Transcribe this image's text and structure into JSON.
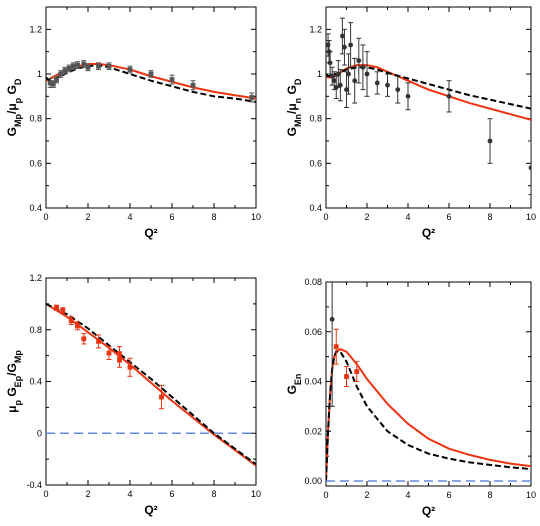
{
  "chart_data": [
    {
      "id": "gmp",
      "type": "line",
      "ylabel": "G_Mp/μ_p G_D",
      "xlabel": "Q²",
      "xlim": [
        0,
        10
      ],
      "ylim": [
        0.4,
        1.3
      ],
      "x_ticks": [
        0,
        2,
        4,
        6,
        8,
        10
      ],
      "y_ticks": [
        0.4,
        0.6,
        0.8,
        1,
        1.2
      ],
      "grid": false,
      "series": [
        {
          "style": "solid",
          "color": "#ee3311",
          "x": [
            0,
            0.1,
            0.3,
            0.6,
            1,
            1.5,
            2,
            2.5,
            3,
            4,
            5,
            6,
            7,
            8,
            9,
            10
          ],
          "y": [
            0.97,
            0.975,
            0.985,
            1.0,
            1.02,
            1.035,
            1.045,
            1.045,
            1.04,
            1.02,
            0.99,
            0.965,
            0.94,
            0.92,
            0.905,
            0.89
          ]
        },
        {
          "style": "dashed",
          "color": "#000000",
          "x": [
            0,
            0.1,
            0.3,
            0.6,
            1,
            1.5,
            2,
            2.5,
            3,
            4,
            5,
            6,
            7,
            8,
            9,
            10
          ],
          "y": [
            0.985,
            0.975,
            0.975,
            0.985,
            1.005,
            1.025,
            1.035,
            1.04,
            1.03,
            1.0,
            0.97,
            0.945,
            0.92,
            0.9,
            0.89,
            0.875
          ]
        },
        {
          "style": "markers",
          "marker": "square",
          "color": "#555555",
          "x": [
            0.2,
            0.35,
            0.5,
            0.7,
            0.9,
            1.1,
            1.3,
            1.5,
            1.8,
            2.0,
            2.5,
            3.0,
            4.0,
            5.0,
            6.0,
            7.0,
            9.8
          ],
          "y": [
            0.96,
            0.955,
            0.975,
            1.0,
            1.015,
            1.025,
            1.035,
            1.04,
            1.045,
            1.03,
            1.035,
            1.035,
            1.02,
            1.0,
            0.975,
            0.95,
            0.895
          ],
          "err": [
            0.02,
            0.015,
            0.015,
            0.015,
            0.015,
            0.015,
            0.015,
            0.015,
            0.015,
            0.015,
            0.015,
            0.015,
            0.015,
            0.015,
            0.02,
            0.02,
            0.02
          ]
        }
      ]
    },
    {
      "id": "gmn",
      "type": "line",
      "ylabel": "G_Mn/μ_n G_D",
      "xlabel": "Q²",
      "xlim": [
        0,
        10
      ],
      "ylim": [
        0.4,
        1.3
      ],
      "x_ticks": [
        0,
        2,
        4,
        6,
        8,
        10
      ],
      "y_ticks": [
        0.4,
        0.6,
        0.8,
        1,
        1.2
      ],
      "grid": false,
      "series": [
        {
          "style": "solid",
          "color": "#ee3311",
          "x": [
            0,
            0.1,
            0.3,
            0.6,
            1,
            1.5,
            2,
            2.5,
            3,
            4,
            5,
            6,
            7,
            8,
            9,
            10
          ],
          "y": [
            1.0,
            0.985,
            0.985,
            1.0,
            1.025,
            1.04,
            1.04,
            1.03,
            1.01,
            0.97,
            0.93,
            0.9,
            0.87,
            0.845,
            0.82,
            0.795
          ]
        },
        {
          "style": "dashed",
          "color": "#000000",
          "x": [
            0,
            0.1,
            0.3,
            0.6,
            1,
            1.5,
            2,
            2.5,
            3,
            4,
            5,
            6,
            7,
            8,
            9,
            10
          ],
          "y": [
            1.0,
            0.99,
            0.995,
            1.005,
            1.02,
            1.03,
            1.03,
            1.02,
            1.005,
            0.98,
            0.955,
            0.93,
            0.905,
            0.885,
            0.865,
            0.845
          ]
        },
        {
          "style": "markers",
          "marker": "circle",
          "color": "#333333",
          "x": [
            0.1,
            0.15,
            0.2,
            0.3,
            0.4,
            0.5,
            0.6,
            0.7,
            0.8,
            0.9,
            1.0,
            1.1,
            1.2,
            1.4,
            1.6,
            1.8,
            2.0,
            2.5,
            3.0,
            3.5,
            4.0,
            6.0,
            8.0,
            10.0
          ],
          "y": [
            1.13,
            1.1,
            1.05,
            0.99,
            0.97,
            0.94,
            1.0,
            0.95,
            1.17,
            1.12,
            0.93,
            1.0,
            1.13,
            0.97,
            1.06,
            1.03,
            1.0,
            0.96,
            0.95,
            0.93,
            0.9,
            0.9,
            0.7,
            0.58
          ],
          "err": [
            0.05,
            0.05,
            0.05,
            0.04,
            0.04,
            0.05,
            0.06,
            0.07,
            0.08,
            0.08,
            0.08,
            0.09,
            0.1,
            0.1,
            0.1,
            0.1,
            0.1,
            0.05,
            0.05,
            0.06,
            0.06,
            0.07,
            0.1,
            0.12
          ]
        }
      ]
    },
    {
      "id": "ratio",
      "type": "line",
      "ylabel": "μ_p G_Ep/G_Mp",
      "xlabel": "Q²",
      "xlim": [
        0,
        10
      ],
      "ylim": [
        -0.4,
        1.2
      ],
      "x_ticks": [
        0,
        2,
        4,
        6,
        8,
        10
      ],
      "y_ticks": [
        -0.4,
        0,
        0.4,
        0.8,
        1.2
      ],
      "grid": false,
      "series": [
        {
          "style": "solid",
          "color": "#ee3311",
          "x": [
            0,
            1,
            2,
            3,
            4,
            5,
            6,
            7,
            8,
            9,
            10
          ],
          "y": [
            1.0,
            0.9,
            0.78,
            0.66,
            0.53,
            0.39,
            0.25,
            0.12,
            -0.01,
            -0.13,
            -0.25
          ]
        },
        {
          "style": "dashed",
          "color": "#000000",
          "x": [
            0,
            1,
            2,
            3,
            4,
            5,
            6,
            7,
            8,
            9,
            10
          ],
          "y": [
            1.0,
            0.92,
            0.81,
            0.68,
            0.55,
            0.42,
            0.28,
            0.14,
            0.0,
            -0.12,
            -0.24
          ]
        },
        {
          "style": "hline",
          "color": "#6688dd",
          "y": 0
        },
        {
          "style": "markers",
          "marker": "square",
          "color": "#ee3311",
          "x": [
            0.5,
            0.8,
            1.2,
            1.5,
            1.8,
            2.5,
            3.0,
            3.5,
            3.5,
            4.0,
            5.5
          ],
          "y": [
            0.97,
            0.95,
            0.87,
            0.83,
            0.73,
            0.71,
            0.62,
            0.61,
            0.57,
            0.51,
            0.28
          ],
          "err": [
            0.02,
            0.02,
            0.03,
            0.03,
            0.04,
            0.05,
            0.05,
            0.06,
            0.06,
            0.07,
            0.09
          ]
        }
      ]
    },
    {
      "id": "gen",
      "type": "line",
      "ylabel": "G_En",
      "xlabel": "Q²",
      "xlim": [
        0,
        10
      ],
      "ylim": [
        -0.002,
        0.08
      ],
      "x_ticks": [
        0,
        2,
        4,
        6,
        8,
        10
      ],
      "y_ticks": [
        0,
        0.02,
        0.04,
        0.06,
        0.08
      ],
      "y_tick_labels": [
        "0.00",
        "0.02",
        "0.04",
        "0.06",
        "0.08"
      ],
      "grid": false,
      "series": [
        {
          "style": "solid",
          "color": "#ee3311",
          "x": [
            0,
            0.1,
            0.2,
            0.3,
            0.4,
            0.5,
            0.7,
            1.0,
            1.5,
            2,
            3,
            4,
            5,
            6,
            7,
            8,
            9,
            10
          ],
          "y": [
            0,
            0.02,
            0.035,
            0.045,
            0.05,
            0.052,
            0.053,
            0.052,
            0.047,
            0.041,
            0.031,
            0.023,
            0.017,
            0.013,
            0.0105,
            0.0085,
            0.007,
            0.006
          ]
        },
        {
          "style": "dashed",
          "color": "#000000",
          "x": [
            0,
            0.1,
            0.2,
            0.3,
            0.4,
            0.5,
            0.7,
            1.0,
            1.5,
            2,
            3,
            4,
            5,
            6,
            7,
            8,
            9,
            10
          ],
          "y": [
            0,
            0.02,
            0.035,
            0.045,
            0.05,
            0.052,
            0.052,
            0.048,
            0.038,
            0.03,
            0.02,
            0.0145,
            0.011,
            0.009,
            0.0075,
            0.0065,
            0.0055,
            0.0048
          ]
        },
        {
          "style": "hline",
          "color": "#6688dd",
          "y": 0
        },
        {
          "style": "markers",
          "marker": "circle",
          "color": "#333333",
          "x": [
            0.3
          ],
          "y": [
            0.065
          ],
          "err": [
            0.035
          ]
        },
        {
          "style": "markers",
          "marker": "square",
          "color": "#ee3311",
          "x": [
            0.5,
            1.0,
            1.5
          ],
          "y": [
            0.054,
            0.042,
            0.044
          ],
          "err": [
            0.007,
            0.004,
            0.004
          ]
        }
      ]
    }
  ]
}
